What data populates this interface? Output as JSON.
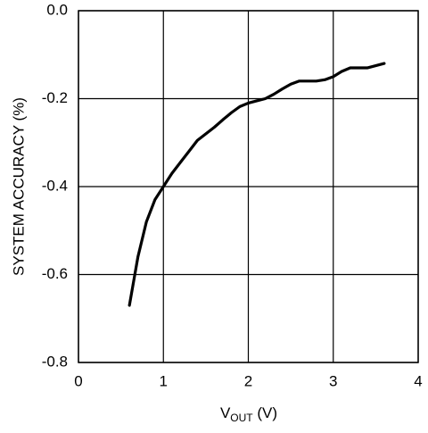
{
  "chart_data": {
    "type": "line",
    "ylabel": "SYSTEM ACCURACY (%)",
    "xlabel": [
      "V",
      "OUT",
      " (V)"
    ],
    "x": [
      0.6,
      0.7,
      0.8,
      0.9,
      1.0,
      1.1,
      1.2,
      1.3,
      1.4,
      1.5,
      1.6,
      1.7,
      1.8,
      1.9,
      2.0,
      2.1,
      2.2,
      2.3,
      2.4,
      2.5,
      2.6,
      2.7,
      2.8,
      2.9,
      3.0,
      3.1,
      3.2,
      3.3,
      3.4,
      3.5,
      3.6
    ],
    "series": [
      {
        "color": "#000000",
        "values": [
          -0.67,
          -0.56,
          -0.48,
          -0.43,
          -0.4,
          -0.37,
          -0.345,
          -0.32,
          -0.295,
          -0.28,
          -0.265,
          -0.248,
          -0.232,
          -0.218,
          -0.21,
          -0.205,
          -0.2,
          -0.19,
          -0.178,
          -0.167,
          -0.16,
          -0.16,
          -0.16,
          -0.157,
          -0.15,
          -0.138,
          -0.13,
          -0.13,
          -0.13,
          -0.125,
          -0.12
        ]
      }
    ],
    "xlim": [
      0,
      4
    ],
    "xticks": [
      0,
      1,
      2,
      3,
      4
    ],
    "ylim": [
      -0.8,
      0
    ],
    "yticks": [
      {
        "value": 0,
        "label": "0.0"
      },
      -0.2,
      -0.4,
      -0.6,
      -0.8
    ],
    "grid": true
  }
}
